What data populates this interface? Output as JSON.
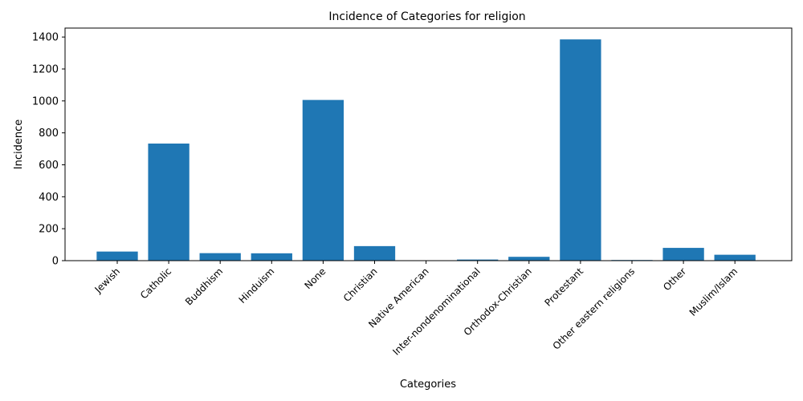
{
  "chart_data": {
    "type": "bar",
    "title": "Incidence of Categories for religion",
    "xlabel": "Categories",
    "ylabel": "Incidence",
    "categories": [
      "Jewish",
      "Catholic",
      "Buddhism",
      "Hinduism",
      "None",
      "Christian",
      "Native American",
      "Inter-nondenominational",
      "Orthodox-Christian",
      "Protestant",
      "Other eastern religions",
      "Other",
      "Muslim/Islam"
    ],
    "values": [
      57,
      733,
      47,
      46,
      1006,
      91,
      1,
      7,
      24,
      1385,
      4,
      80,
      37
    ],
    "ylim": [
      0,
      1456
    ],
    "yticks": [
      0,
      200,
      400,
      600,
      800,
      1000,
      1200,
      1400
    ],
    "bar_color": "#1f77b4",
    "grid": false,
    "legend": "none"
  }
}
